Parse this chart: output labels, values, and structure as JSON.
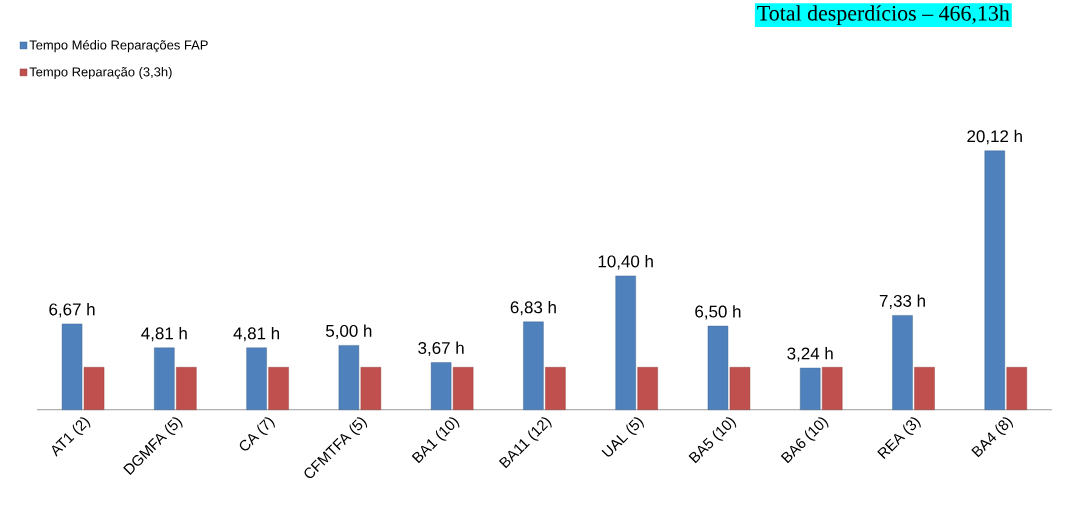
{
  "chart_data": {
    "type": "bar",
    "title": "Total desperdícios – 466,13h",
    "categories": [
      "AT1 (2)",
      "DGMFA (5)",
      "CA (7)",
      "CFMTFA (5)",
      "BA1 (10)",
      "BA11 (12)",
      "UAL (5)",
      "BA5 (10)",
      "BA6 (10)",
      "REA (3)",
      "BA4 (8)"
    ],
    "series": [
      {
        "name": "Tempo Médio Reparações FAP",
        "color": "#4f81bd",
        "values": [
          6.67,
          4.81,
          4.81,
          5.0,
          3.67,
          6.83,
          10.4,
          6.5,
          3.24,
          7.33,
          20.12
        ],
        "value_labels": [
          "6,67 h",
          "4,81 h",
          "4,81 h",
          "5,00 h",
          "3,67 h",
          "6,83 h",
          "10,40 h",
          "6,50 h",
          "3,24 h",
          "7,33 h",
          "20,12 h"
        ]
      },
      {
        "name": "Tempo Reparação (3,3h)",
        "color": "#c0504d",
        "values": [
          3.3,
          3.3,
          3.3,
          3.3,
          3.3,
          3.3,
          3.3,
          3.3,
          3.3,
          3.3,
          3.3
        ]
      }
    ],
    "legend": "top left"
  }
}
